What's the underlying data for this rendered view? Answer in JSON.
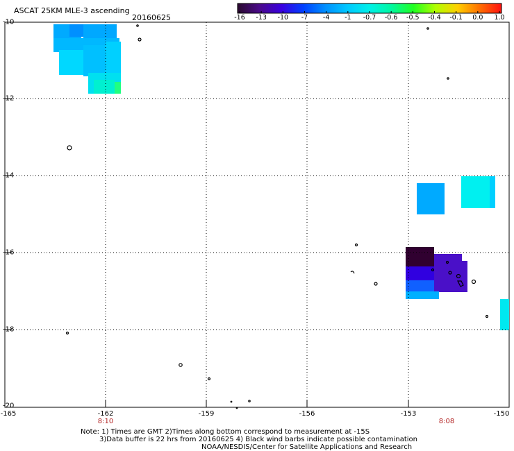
{
  "header": {
    "title": "ASCAT 25KM MLE-3 ascending",
    "date": "20160625"
  },
  "colorbar": {
    "labels": [
      "-16",
      "-13",
      "-10",
      "-7",
      "-4",
      "-1",
      "-0.7",
      "-0.6",
      "-0.5",
      "-0.4",
      "-0.1",
      "0.0",
      "1.0"
    ],
    "colors": [
      "#2a0a2e",
      "#4a0a8a",
      "#3a00e0",
      "#0040ff",
      "#0090ff",
      "#00c8ff",
      "#00f0e8",
      "#00f8a0",
      "#20ff20",
      "#b0ff00",
      "#ffd000",
      "#ff7000",
      "#ff1010"
    ]
  },
  "axes": {
    "lat_labels": [
      "-10",
      "-12",
      "-14",
      "-16",
      "-18",
      "-20"
    ],
    "lon_labels": [
      "-165",
      "-162",
      "-159",
      "-156",
      "-153",
      "-150"
    ]
  },
  "times": [
    "8:10",
    "8:08"
  ],
  "notes": {
    "line1": "Note: 1) Times are GMT 2)Times along bottom correspond to measurement at -15S",
    "line2": "3)Data buffer is 22 hrs from 20160625 4) Black wind barbs indicate possible contamination",
    "line3": "NOAA/NESDIS/Center for Satellite Applications and Research"
  },
  "colors": {
    "frame": "#000000",
    "grid": "#000000",
    "time_label": "#b22222"
  }
}
